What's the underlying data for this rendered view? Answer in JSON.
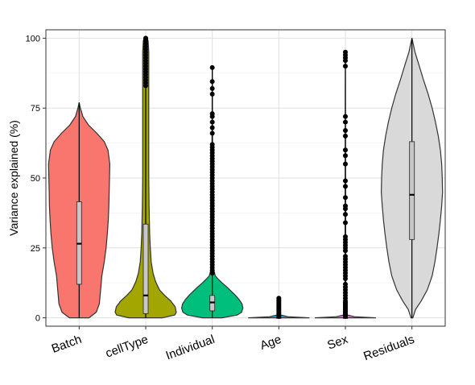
{
  "chart_data": {
    "type": "violin",
    "title": "",
    "xlabel": "",
    "ylabel": "Variance explained (%)",
    "ylim": [
      -3,
      103
    ],
    "yticks": [
      0,
      25,
      50,
      75,
      100
    ],
    "ytick_labels": [
      "0",
      "25",
      "50",
      "75",
      "100"
    ],
    "grid": true,
    "legend": "none",
    "categories": [
      "Batch",
      "cellType",
      "Individual",
      "Age",
      "Sex",
      "Residuals"
    ],
    "series": [
      {
        "category": "Batch",
        "color": "#F8766D",
        "min": 0,
        "q1": 12,
        "median": 26.5,
        "q3": 41.5,
        "max": 77,
        "density": [
          [
            0,
            0.32
          ],
          [
            2,
            0.56
          ],
          [
            5,
            0.66
          ],
          [
            10,
            0.7
          ],
          [
            15,
            0.74
          ],
          [
            20,
            0.82
          ],
          [
            25,
            0.88
          ],
          [
            30,
            0.92
          ],
          [
            35,
            0.95
          ],
          [
            40,
            0.97
          ],
          [
            45,
            0.98
          ],
          [
            50,
            0.99
          ],
          [
            55,
            1.0
          ],
          [
            60,
            0.94
          ],
          [
            63,
            0.82
          ],
          [
            66,
            0.58
          ],
          [
            69,
            0.3
          ],
          [
            72,
            0.12
          ],
          [
            75,
            0.04
          ],
          [
            77,
            0
          ]
        ],
        "outliers": []
      },
      {
        "category": "cellType",
        "color": "#A3A500",
        "min": 0,
        "q1": 1.5,
        "median": 8,
        "q3": 33.5,
        "max": 82,
        "density": [
          [
            0,
            0.55
          ],
          [
            1,
            0.95
          ],
          [
            2,
            1.0
          ],
          [
            4,
            0.96
          ],
          [
            6,
            0.82
          ],
          [
            8,
            0.62
          ],
          [
            10,
            0.45
          ],
          [
            13,
            0.32
          ],
          [
            16,
            0.24
          ],
          [
            20,
            0.18
          ],
          [
            25,
            0.15
          ],
          [
            30,
            0.13
          ],
          [
            40,
            0.11
          ],
          [
            50,
            0.1
          ],
          [
            60,
            0.1
          ],
          [
            70,
            0.1
          ],
          [
            80,
            0.1
          ],
          [
            85,
            0.1
          ],
          [
            90,
            0.1
          ],
          [
            95,
            0.1
          ],
          [
            99,
            0.08
          ],
          [
            100,
            0.05
          ]
        ],
        "outliers": [
          83,
          84,
          85,
          86,
          87,
          88,
          89,
          90,
          91,
          92,
          93,
          94,
          95,
          96,
          97,
          98,
          99,
          99.5,
          100
        ]
      },
      {
        "category": "Individual",
        "color": "#00BF7D",
        "min": 0,
        "q1": 2.5,
        "median": 5.5,
        "q3": 8,
        "max": 15,
        "density": [
          [
            0,
            0.32
          ],
          [
            1,
            0.82
          ],
          [
            2,
            0.96
          ],
          [
            3.5,
            1.0
          ],
          [
            5,
            0.97
          ],
          [
            6.5,
            0.88
          ],
          [
            8,
            0.76
          ],
          [
            9.5,
            0.62
          ],
          [
            11,
            0.48
          ],
          [
            12.5,
            0.32
          ],
          [
            14,
            0.18
          ],
          [
            15,
            0.1
          ],
          [
            17,
            0.05
          ],
          [
            20,
            0.03
          ],
          [
            30,
            0.01
          ],
          [
            60,
            0.01
          ],
          [
            89,
            0
          ]
        ],
        "outliers": [
          16,
          17,
          18,
          19,
          20,
          21,
          22,
          23,
          24,
          25,
          26,
          27,
          28,
          29,
          30,
          31,
          32,
          33,
          34,
          35,
          36,
          37,
          38,
          39,
          40,
          41,
          42,
          43,
          44,
          45,
          46,
          47,
          48,
          49,
          50,
          51,
          52,
          53,
          54,
          55,
          56,
          57,
          58,
          59,
          60,
          61,
          62,
          66,
          68,
          70,
          72,
          73,
          80,
          82,
          84.5,
          89.5
        ]
      },
      {
        "category": "Age",
        "color": "#00B0F6",
        "min": 0,
        "q1": 0,
        "median": 0,
        "q3": 0,
        "max": 0,
        "density": [
          [
            0,
            1.0
          ],
          [
            0.4,
            0.3
          ],
          [
            1,
            0.06
          ],
          [
            3,
            0.02
          ],
          [
            7,
            0
          ]
        ],
        "outliers": [
          0.5,
          1,
          1.5,
          2,
          2.5,
          3,
          3.5,
          4,
          4.5,
          5,
          5.5,
          6,
          6.5,
          7
        ]
      },
      {
        "category": "Sex",
        "color": "#E76BF3",
        "min": 0,
        "q1": 0,
        "median": 0,
        "q3": 0,
        "max": 0,
        "density": [
          [
            0,
            1.0
          ],
          [
            0.4,
            0.3
          ],
          [
            1,
            0.06
          ],
          [
            3,
            0.02
          ],
          [
            10,
            0.01
          ],
          [
            95,
            0
          ]
        ],
        "outliers": [
          0.5,
          1,
          1.5,
          2,
          2.5,
          3,
          3.5,
          4,
          4.5,
          5,
          5.5,
          6,
          7,
          8,
          9,
          10,
          11,
          12,
          14,
          15,
          16,
          17,
          18,
          19,
          20,
          21,
          22,
          24,
          25,
          26,
          27,
          28,
          29,
          34,
          37,
          39,
          40,
          43,
          47,
          49,
          55,
          58,
          60,
          65,
          67,
          70,
          72,
          90,
          92,
          93,
          94,
          95
        ]
      },
      {
        "category": "Residuals",
        "color": "#D9D9D9",
        "min": 0,
        "q1": 28,
        "median": 44,
        "q3": 63,
        "max": 100,
        "density": [
          [
            0,
            0.03
          ],
          [
            3,
            0.12
          ],
          [
            6,
            0.3
          ],
          [
            10,
            0.5
          ],
          [
            15,
            0.66
          ],
          [
            20,
            0.75
          ],
          [
            25,
            0.82
          ],
          [
            30,
            0.88
          ],
          [
            35,
            0.93
          ],
          [
            40,
            0.97
          ],
          [
            45,
            1.0
          ],
          [
            50,
            0.99
          ],
          [
            55,
            0.97
          ],
          [
            60,
            0.93
          ],
          [
            65,
            0.86
          ],
          [
            70,
            0.77
          ],
          [
            75,
            0.66
          ],
          [
            80,
            0.53
          ],
          [
            85,
            0.38
          ],
          [
            90,
            0.24
          ],
          [
            95,
            0.1
          ],
          [
            98,
            0.04
          ],
          [
            100,
            0
          ]
        ],
        "outliers": []
      }
    ]
  }
}
